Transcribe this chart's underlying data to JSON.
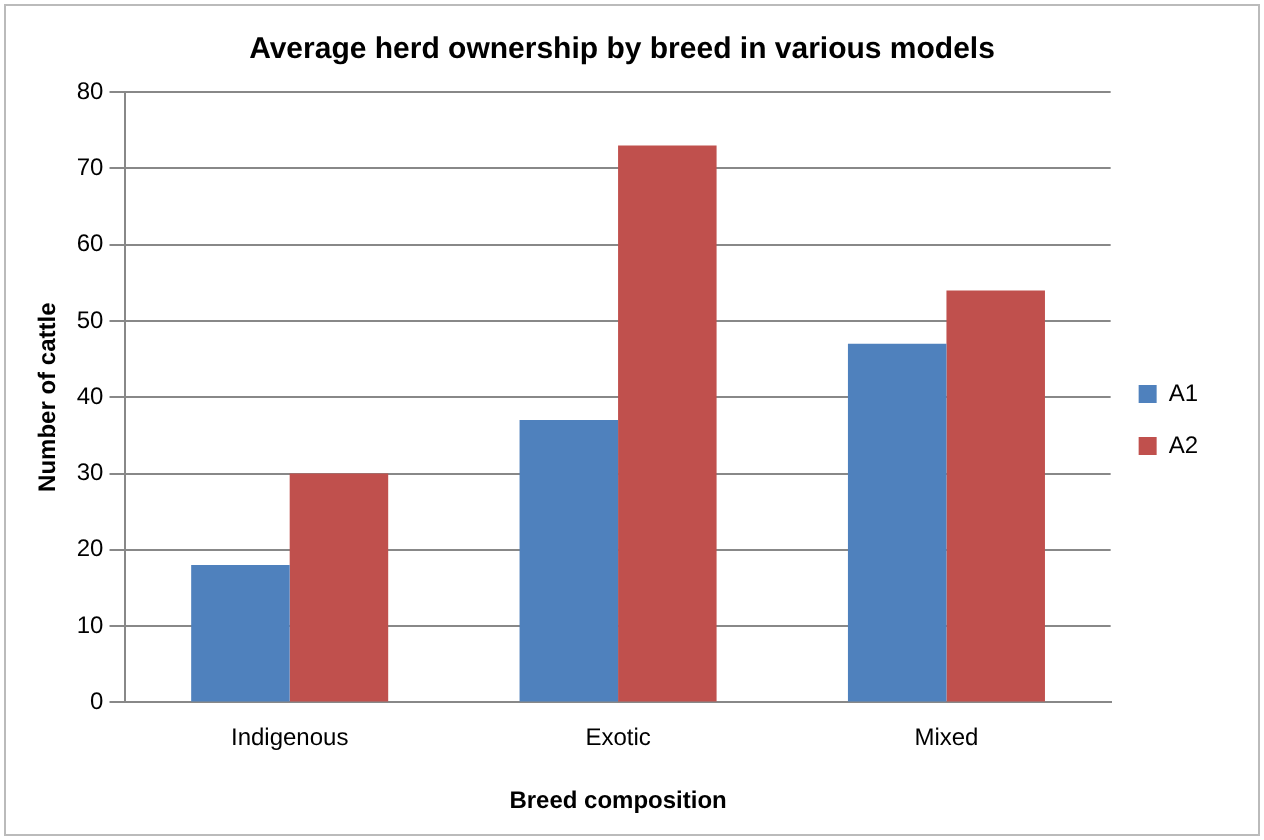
{
  "chart_data": {
    "type": "bar",
    "title": "Average herd ownership by breed in various models",
    "xlabel": "Breed composition",
    "ylabel": "Number of cattle",
    "categories": [
      "Indigenous",
      "Exotic",
      "Mixed"
    ],
    "series": [
      {
        "name": "A1",
        "color": "#4f81bd",
        "values": [
          18,
          37,
          47
        ]
      },
      {
        "name": "A2",
        "color": "#c0504d",
        "values": [
          30,
          73,
          54
        ]
      }
    ],
    "ylim": [
      0,
      80
    ],
    "yticks": [
      0,
      10,
      20,
      30,
      40,
      50,
      60,
      70,
      80
    ],
    "grid": "y",
    "legend": "right"
  }
}
